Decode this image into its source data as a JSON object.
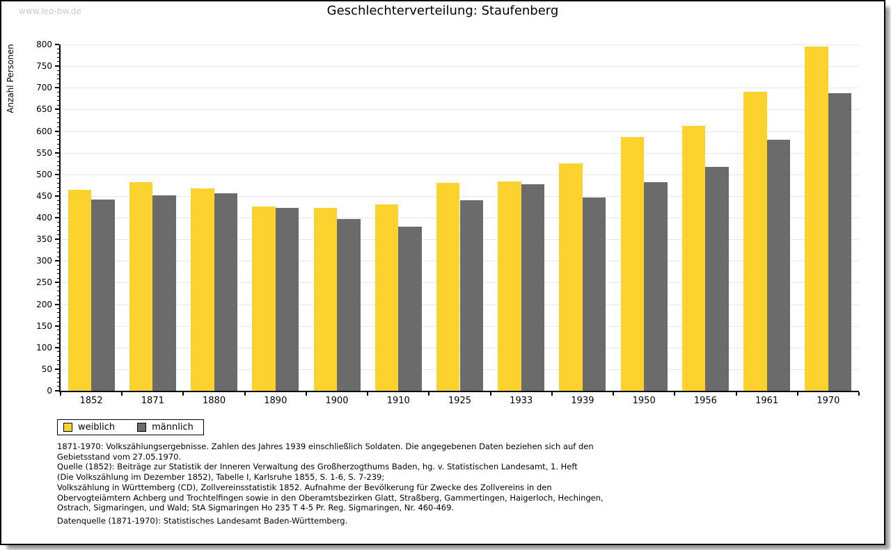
{
  "page": {
    "watermark": "www.leo-bw.de",
    "title": "Geschlechterverteilung: Staufenberg"
  },
  "chart_data": {
    "type": "bar",
    "title": "Geschlechterverteilung: Staufenberg",
    "xlabel": "",
    "ylabel": "Anzahl Personen",
    "ylim": [
      0,
      800
    ],
    "ytick_major": 50,
    "ytick_minor": 10,
    "grid": true,
    "legend_position": "bottom-left",
    "categories": [
      "1852",
      "1871",
      "1880",
      "1890",
      "1900",
      "1910",
      "1925",
      "1933",
      "1939",
      "1950",
      "1956",
      "1961",
      "1970"
    ],
    "series": [
      {
        "name": "weiblich",
        "color": "#fcd22f",
        "values": [
          465,
          482,
          467,
          425,
          423,
          431,
          480,
          484,
          526,
          587,
          612,
          690,
          795
        ]
      },
      {
        "name": "männlich",
        "color": "#6b6b6b",
        "values": [
          442,
          451,
          456,
          423,
          397,
          379,
          440,
          477,
          446,
          482,
          518,
          580,
          688
        ]
      }
    ]
  },
  "footer": {
    "lines": [
      "1871-1970: Volkszählungsergebnisse. Zahlen des Jahres 1939 einschließlich Soldaten. Die angegebenen Daten beziehen sich auf den",
      "Gebietsstand vom 27.05.1970.",
      "Quelle (1852): Beiträge zur Statistik der Inneren Verwaltung des Großherzogthums Baden, hg. v. Statistischen Landesamt, 1. Heft",
      "(Die Volkszählung im Dezember 1852), Tabelle I, Karlsruhe 1855, S. 1-6, S. 7-239;",
      "Volkszählung in Württemberg (CD), Zollvereinsstatistik 1852. Aufnahme der Bevölkerung für Zwecke des Zollvereins in den",
      "Obervogteiämtern Achberg und Trochtelfingen sowie in den Oberamtsbezirken Glatt, Straßberg, Gammertingen, Haigerloch, Hechingen,",
      "Ostrach, Sigmaringen, und Wald; StA Sigmaringen Ho 235 T 4-5 Pr. Reg. Sigmaringen, Nr. 460-469."
    ],
    "datasource": "Datenquelle (1871-1970): Statistisches Landesamt Baden-Württemberg."
  },
  "colors": {
    "female_bar": "#fcd22f",
    "male_bar": "#6b6b6b",
    "gridline": "#e7e7e7",
    "axis": "#000000",
    "watermark_text": "#c9c9c9",
    "frame_shadow": "#989898"
  }
}
